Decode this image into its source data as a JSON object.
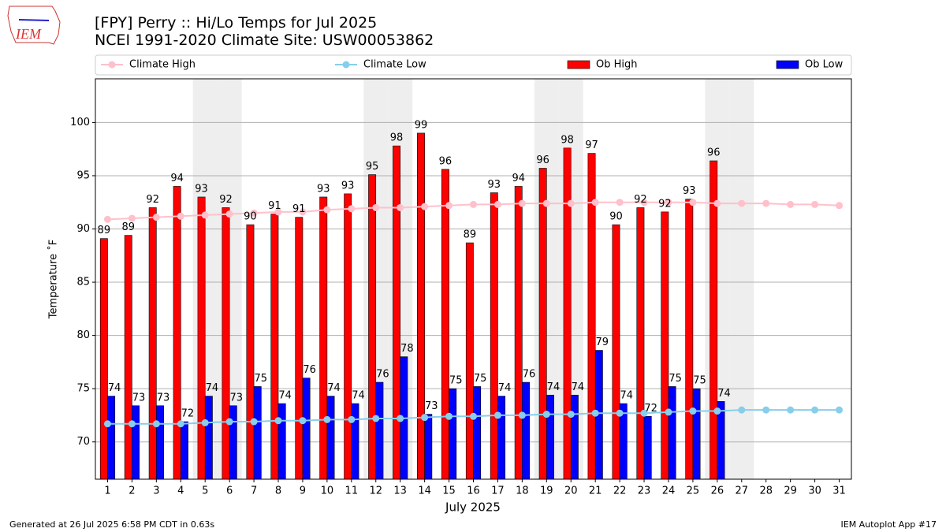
{
  "chart_data": {
    "type": "bar_line",
    "logo_text": "IEM",
    "title": "[FPY] Perry :: Hi/Lo Temps for Jul 2025",
    "subtitle": "NCEI 1991-2020 Climate Site: USW00053862",
    "xlabel": "July 2025",
    "ylabel": "Temperature ˚F",
    "footer_left": "Generated at 26 Jul 2025 6:58 PM CDT in 0.63s",
    "footer_right": "IEM Autoplot App #17",
    "x": [
      1,
      2,
      3,
      4,
      5,
      6,
      7,
      8,
      9,
      10,
      11,
      12,
      13,
      14,
      15,
      16,
      17,
      18,
      19,
      20,
      21,
      22,
      23,
      24,
      25,
      26,
      27,
      28,
      29,
      30,
      31
    ],
    "xlim": [
      0.5,
      31.5
    ],
    "xticks": [
      1,
      2,
      3,
      4,
      5,
      6,
      7,
      8,
      9,
      10,
      11,
      12,
      13,
      14,
      15,
      16,
      17,
      18,
      19,
      20,
      21,
      22,
      23,
      24,
      25,
      26,
      27,
      28,
      29,
      30,
      31
    ],
    "ylim": [
      66.5,
      104.1
    ],
    "yticks": [
      70,
      75,
      80,
      85,
      90,
      95,
      100
    ],
    "grid": true,
    "shaded_days": [
      5,
      6,
      12,
      13,
      19,
      20,
      26,
      27
    ],
    "shade_color": "#eeeeee",
    "series": [
      {
        "name": "Climate High",
        "kind": "line",
        "color": "#ffc0cb",
        "values": [
          90.9,
          91.0,
          91.1,
          91.2,
          91.3,
          91.4,
          91.5,
          91.6,
          91.6,
          91.8,
          91.9,
          92.0,
          92.0,
          92.1,
          92.2,
          92.3,
          92.3,
          92.4,
          92.4,
          92.4,
          92.5,
          92.5,
          92.5,
          92.5,
          92.5,
          92.4,
          92.4,
          92.4,
          92.3,
          92.3,
          92.2
        ]
      },
      {
        "name": "Climate Low",
        "kind": "line",
        "color": "#87ceeb",
        "values": [
          71.7,
          71.7,
          71.7,
          71.7,
          71.8,
          71.9,
          71.9,
          72.0,
          72.0,
          72.1,
          72.1,
          72.2,
          72.2,
          72.3,
          72.4,
          72.4,
          72.5,
          72.5,
          72.6,
          72.6,
          72.7,
          72.7,
          72.7,
          72.8,
          72.9,
          72.9,
          73.0,
          73.0,
          73.0,
          73.0,
          73.0
        ]
      },
      {
        "name": "Ob High",
        "kind": "bar",
        "color": "#ff0000",
        "values": [
          89.1,
          89.4,
          92.0,
          94.0,
          93.0,
          92.0,
          90.4,
          91.4,
          91.1,
          93.0,
          93.3,
          95.1,
          97.8,
          99.0,
          95.6,
          88.7,
          93.4,
          94.0,
          95.7,
          97.6,
          97.1,
          90.4,
          92.0,
          91.6,
          92.8,
          96.4,
          null,
          null,
          null,
          null,
          null
        ],
        "value_labels": [
          "89",
          "89",
          "92",
          "94",
          "93",
          "92",
          "90",
          "91",
          "91",
          "93",
          "93",
          "95",
          "98",
          "99",
          "96",
          "89",
          "93",
          "94",
          "96",
          "98",
          "97",
          "90",
          "92",
          "92",
          "93",
          "96",
          null,
          null,
          null,
          null,
          null
        ]
      },
      {
        "name": "Ob Low",
        "kind": "bar",
        "color": "#0000ff",
        "values": [
          74.3,
          73.4,
          73.4,
          71.9,
          74.3,
          73.4,
          75.2,
          73.6,
          76.0,
          74.3,
          73.6,
          75.6,
          78.0,
          72.6,
          75.0,
          75.2,
          74.3,
          75.6,
          74.4,
          74.4,
          78.6,
          73.6,
          72.4,
          75.2,
          75.0,
          73.8,
          null,
          null,
          null,
          null,
          null
        ],
        "value_labels": [
          "74",
          "73",
          "73",
          "72",
          "74",
          "73",
          "75",
          "74",
          "76",
          "74",
          "74",
          "76",
          "78",
          "73",
          "75",
          "75",
          "74",
          "76",
          "74",
          "74",
          "79",
          "74",
          "72",
          "75",
          "75",
          "74",
          null,
          null,
          null,
          null,
          null
        ]
      }
    ]
  }
}
